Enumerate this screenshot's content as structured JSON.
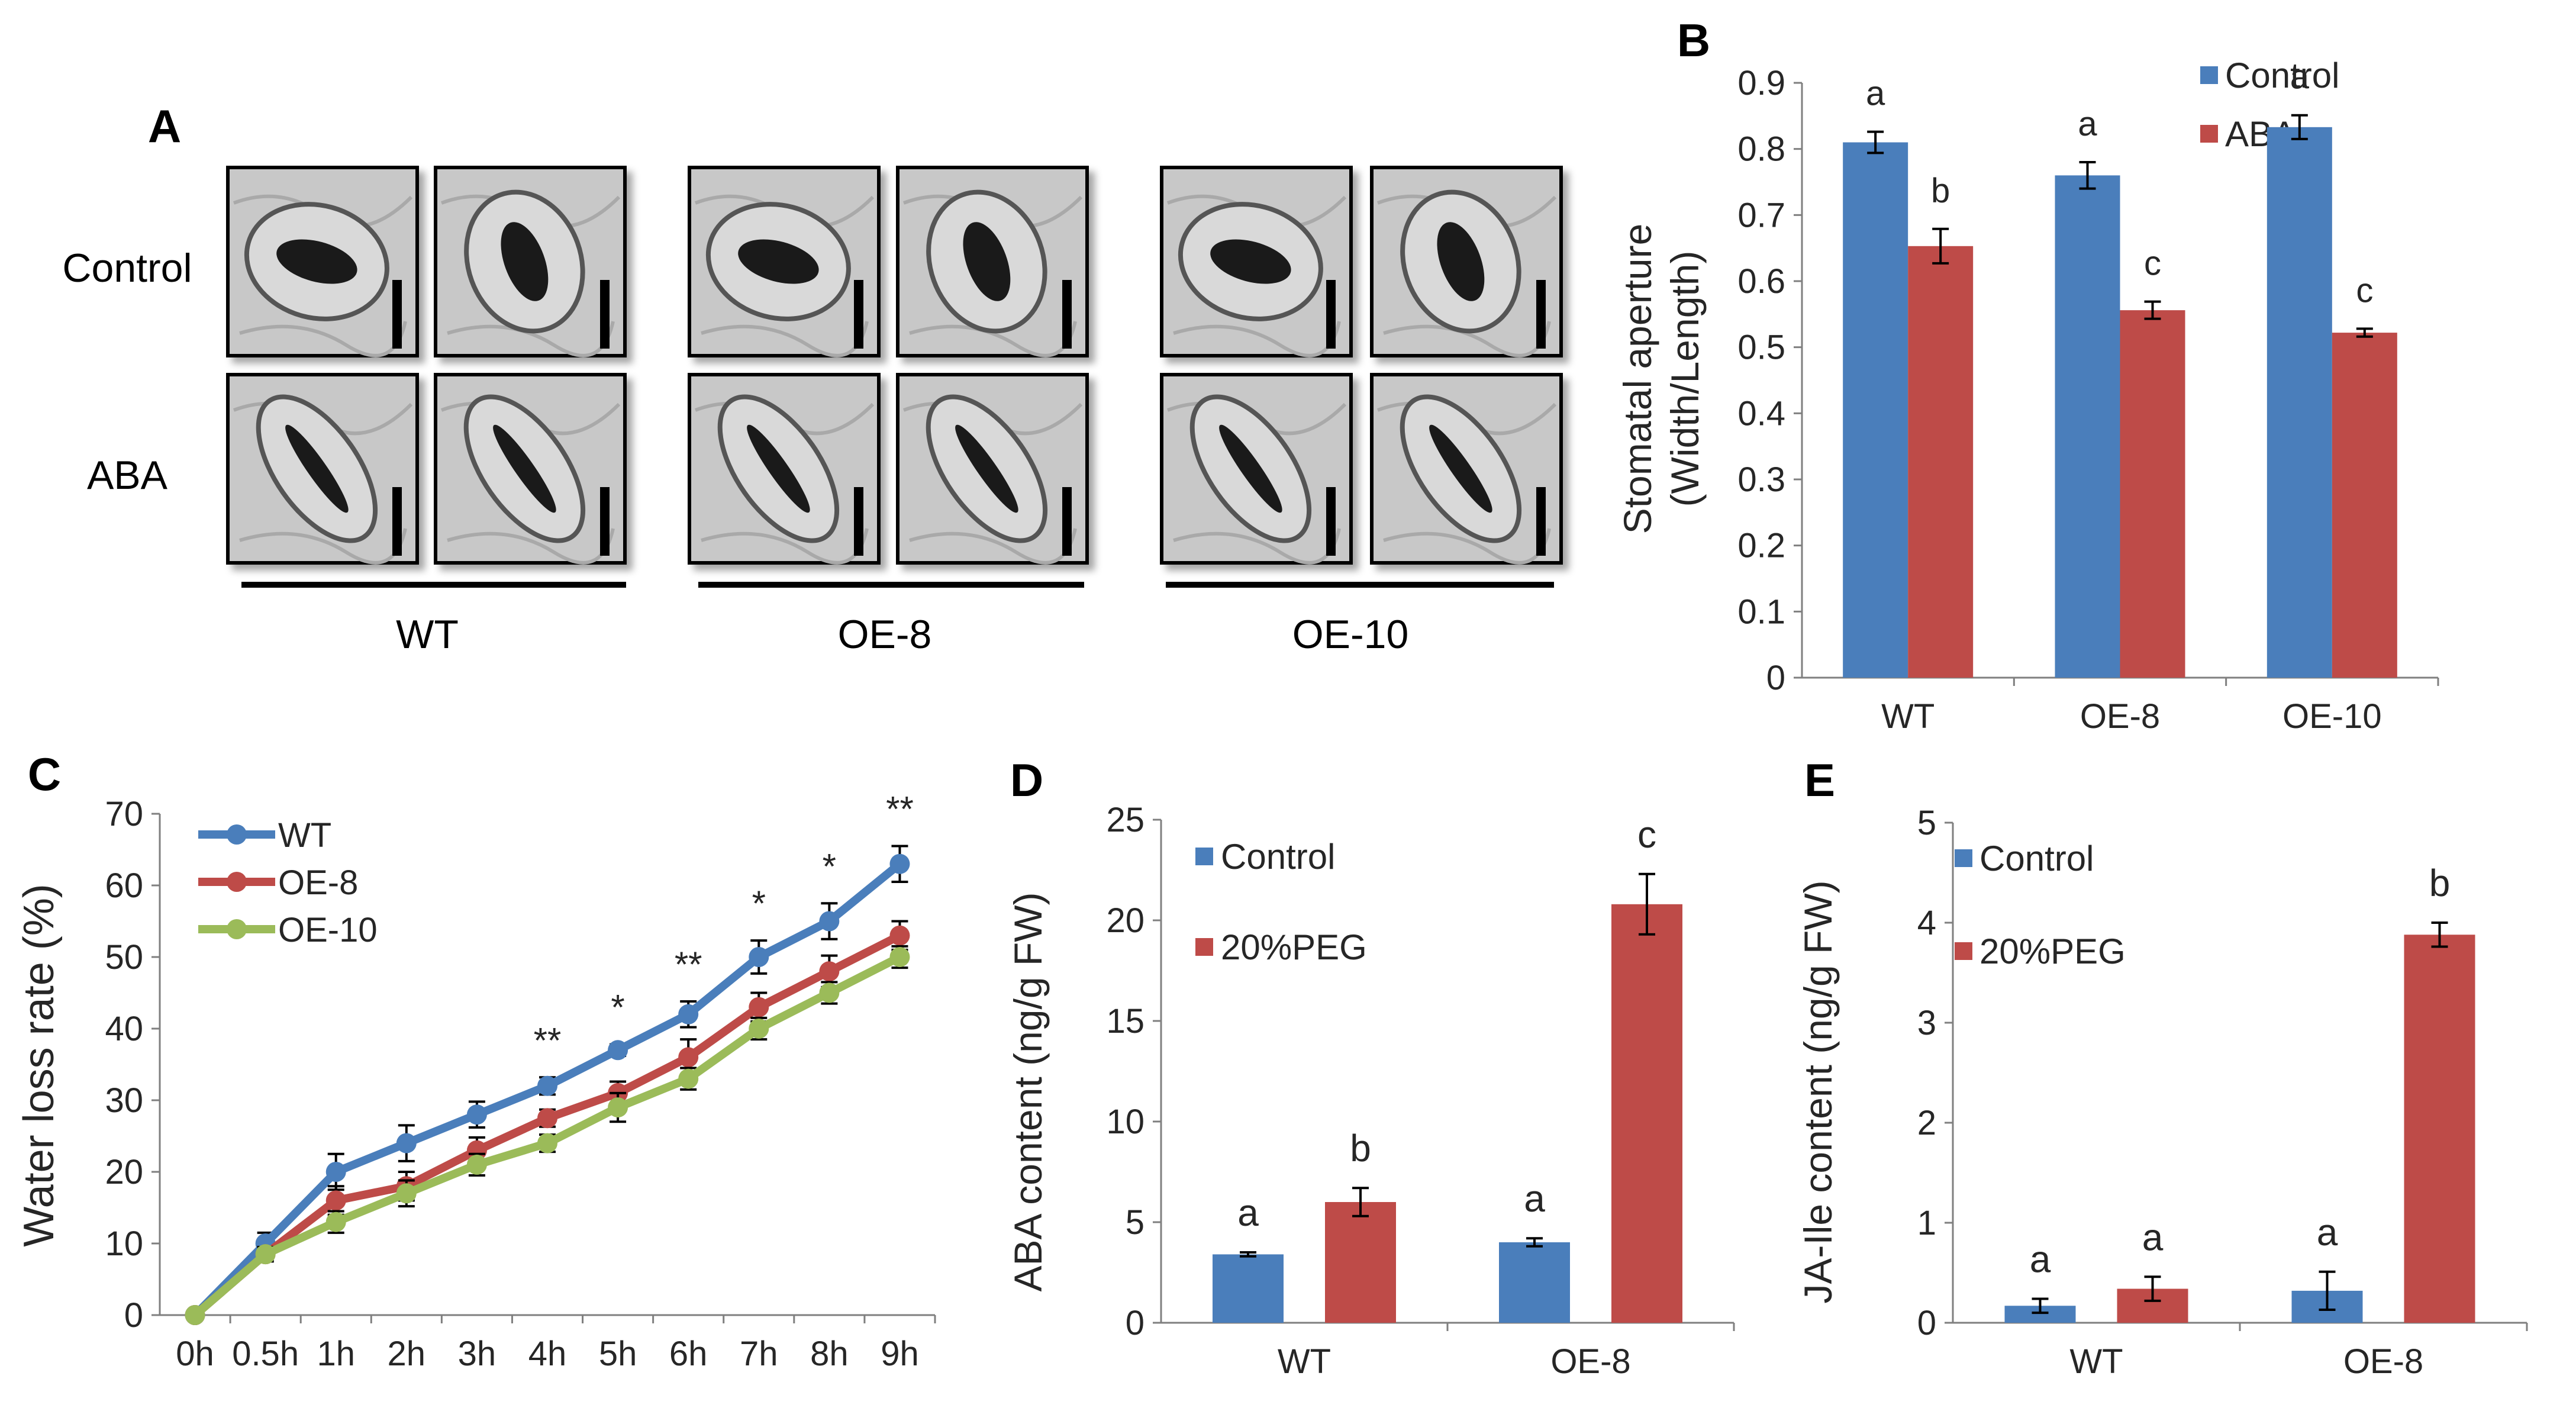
{
  "colors": {
    "blue": "#4a7ebb",
    "red": "#be4b48",
    "green": "#9bbb59",
    "axis": "#7f7f7f",
    "text": "#262626"
  },
  "panel_a": {
    "label": "A",
    "row_labels": [
      "Control",
      "ABA"
    ],
    "group_labels": [
      "WT",
      "OE-8",
      "OE-10"
    ]
  },
  "chart_data": [
    {
      "panel": "B",
      "type": "bar",
      "title": "",
      "xlabel": "",
      "ylabel_lines": [
        "Stomatal aperture",
        "(Width/Length)"
      ],
      "categories": [
        "WT",
        "OE-8",
        "OE-10"
      ],
      "ylim": [
        0,
        0.9
      ],
      "yticks": [
        0,
        0.1,
        0.2,
        0.3,
        0.4,
        0.5,
        0.6,
        0.7,
        0.8,
        0.9
      ],
      "ytick_labels": [
        "0",
        "0.1",
        "0.2",
        "0.3",
        "0.4",
        "0.5",
        "0.6",
        "0.7",
        "0.8",
        "0.9"
      ],
      "legend_position": "top-right",
      "series": [
        {
          "name": "Control",
          "color": "#4a7ebb",
          "values": [
            0.81,
            0.76,
            0.833
          ],
          "errors": [
            0.016,
            0.02,
            0.018
          ],
          "letters": [
            "a",
            "a",
            "a"
          ]
        },
        {
          "name": "ABA",
          "color": "#be4b48",
          "values": [
            0.653,
            0.556,
            0.522
          ],
          "errors": [
            0.026,
            0.013,
            0.006
          ],
          "letters": [
            "b",
            "c",
            "c"
          ]
        }
      ]
    },
    {
      "panel": "C",
      "type": "line",
      "xlabel": "",
      "ylabel": "Water loss rate (%)",
      "x": [
        "0h",
        "0.5h",
        "1h",
        "2h",
        "3h",
        "4h",
        "5h",
        "6h",
        "7h",
        "8h",
        "9h"
      ],
      "ylim": [
        0,
        70
      ],
      "yticks": [
        0,
        10,
        20,
        30,
        40,
        50,
        60,
        70
      ],
      "ytick_labels": [
        "0",
        "10",
        "20",
        "30",
        "40",
        "50",
        "60",
        "70"
      ],
      "legend_position": "top-left",
      "series": [
        {
          "name": "WT",
          "color": "#4a7ebb",
          "values": [
            0,
            10,
            20,
            24,
            28,
            32,
            37,
            42,
            50,
            55,
            63
          ],
          "errors": [
            0.5,
            1.5,
            2.5,
            2.5,
            1.8,
            1.2,
            0.8,
            1.8,
            2.3,
            2.5,
            2.5
          ]
        },
        {
          "name": "OE-8",
          "color": "#be4b48",
          "values": [
            0,
            8.5,
            16,
            18,
            23,
            27.5,
            31,
            36,
            43,
            48,
            53
          ],
          "errors": [
            0.5,
            1,
            2,
            2,
            1.8,
            1.2,
            1.6,
            2.5,
            2,
            2.2,
            2
          ]
        },
        {
          "name": "OE-10",
          "color": "#9bbb59",
          "values": [
            0,
            8.5,
            13,
            17,
            21,
            24,
            29,
            33,
            40,
            45,
            50
          ],
          "errors": [
            0.5,
            1,
            1.5,
            1.8,
            1.5,
            1.2,
            2,
            1.5,
            1.5,
            1.5,
            1.5
          ]
        }
      ],
      "significance": [
        "",
        "",
        "",
        "",
        "",
        "**",
        "*",
        "**",
        "*",
        "*",
        "**"
      ]
    },
    {
      "panel": "D",
      "type": "bar",
      "xlabel": "",
      "ylabel": "ABA content (ng/g FW)",
      "categories": [
        "WT",
        "OE-8"
      ],
      "ylim": [
        0,
        25
      ],
      "yticks": [
        0,
        5,
        10,
        15,
        20,
        25
      ],
      "ytick_labels": [
        "0",
        "5",
        "10",
        "15",
        "20",
        "25"
      ],
      "legend_position": "top-left",
      "series": [
        {
          "name": "Control",
          "color": "#4a7ebb",
          "values": [
            3.4,
            4.0
          ],
          "errors": [
            0.1,
            0.2
          ],
          "letters": [
            "a",
            "a"
          ]
        },
        {
          "name": "20%PEG",
          "color": "#be4b48",
          "values": [
            6.0,
            20.8
          ],
          "errors": [
            0.7,
            1.5
          ],
          "letters": [
            "b",
            "c"
          ]
        }
      ]
    },
    {
      "panel": "E",
      "type": "bar",
      "xlabel": "",
      "ylabel": "JA-Ile content (ng/g FW)",
      "categories": [
        "WT",
        "OE-8"
      ],
      "ylim": [
        0,
        5
      ],
      "yticks": [
        0,
        1,
        2,
        3,
        4,
        5
      ],
      "ytick_labels": [
        "0",
        "1",
        "2",
        "3",
        "4",
        "5"
      ],
      "legend_position": "top-left",
      "series": [
        {
          "name": "Control",
          "color": "#4a7ebb",
          "values": [
            0.17,
            0.32
          ],
          "errors": [
            0.07,
            0.19
          ],
          "letters": [
            "a",
            "a"
          ]
        },
        {
          "name": "20%PEG",
          "color": "#be4b48",
          "values": [
            0.34,
            3.88
          ],
          "errors": [
            0.12,
            0.12
          ],
          "letters": [
            "a",
            "b"
          ]
        }
      ]
    }
  ]
}
